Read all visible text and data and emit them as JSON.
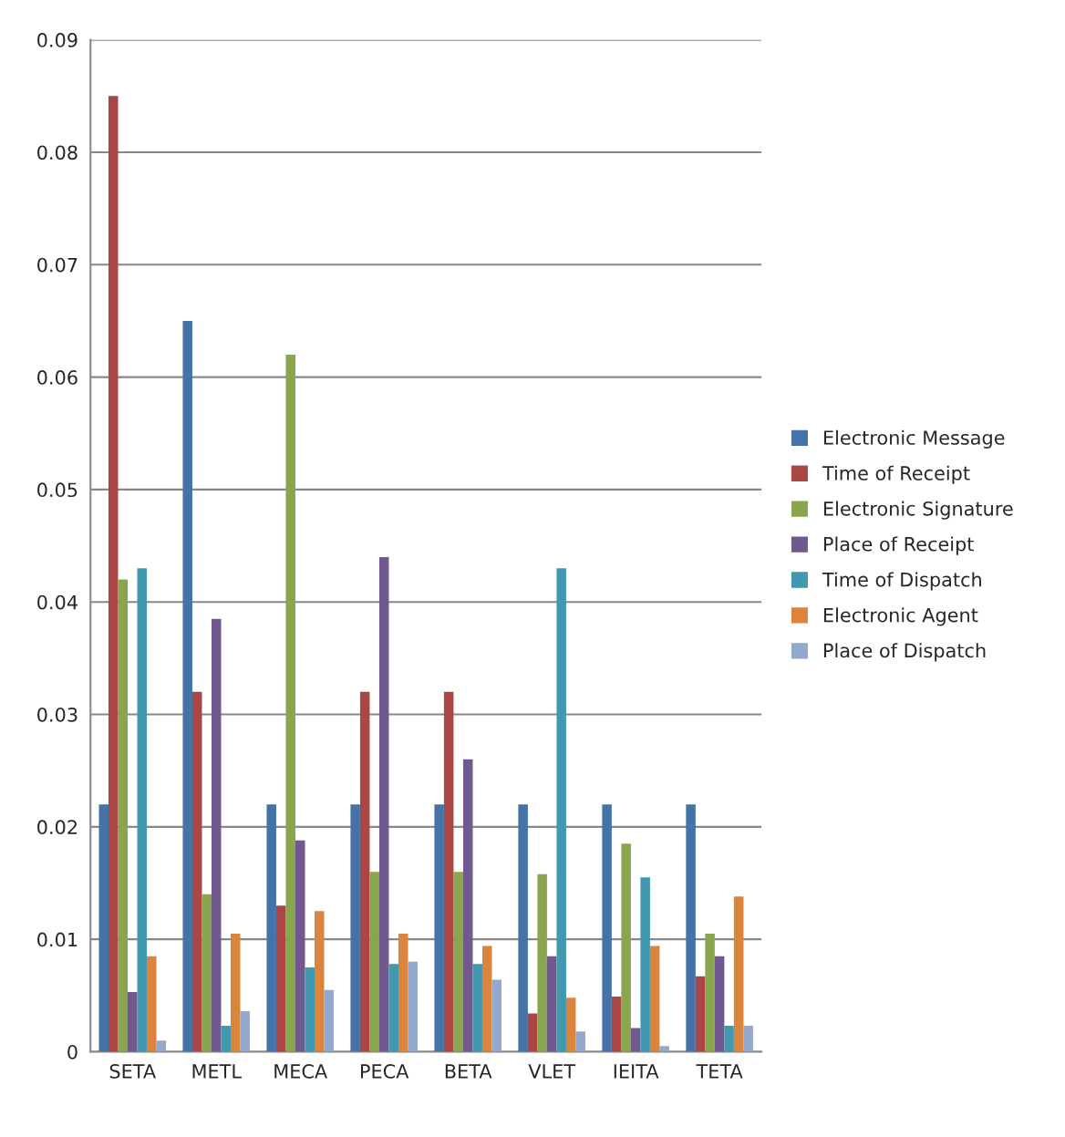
{
  "chart_data": {
    "type": "bar",
    "categories": [
      "SETA",
      "METL",
      "MECA",
      "PECA",
      "BETA",
      "VLET",
      "IEITA",
      "TETA"
    ],
    "series": [
      {
        "name": "Electronic Message",
        "color": "#4572a7",
        "values": [
          0.022,
          0.065,
          0.022,
          0.022,
          0.022,
          0.022,
          0.022,
          0.022
        ]
      },
      {
        "name": "Time of Receipt",
        "color": "#aa4643",
        "values": [
          0.085,
          0.032,
          0.013,
          0.032,
          0.032,
          0.0034,
          0.0049,
          0.0067
        ]
      },
      {
        "name": "Electronic Signature",
        "color": "#89a54e",
        "values": [
          0.042,
          0.014,
          0.062,
          0.016,
          0.016,
          0.0158,
          0.0185,
          0.0105
        ]
      },
      {
        "name": "Place of Receipt",
        "color": "#71588f",
        "values": [
          0.0053,
          0.0385,
          0.0188,
          0.044,
          0.026,
          0.0085,
          0.0021,
          0.0085
        ]
      },
      {
        "name": "Time of Dispatch",
        "color": "#4198af",
        "values": [
          0.043,
          0.0023,
          0.0075,
          0.0078,
          0.0078,
          0.043,
          0.0155,
          0.0023
        ]
      },
      {
        "name": "Electronic Agent",
        "color": "#db843d",
        "values": [
          0.0085,
          0.0105,
          0.0125,
          0.0105,
          0.0094,
          0.0048,
          0.0094,
          0.0138
        ]
      },
      {
        "name": "Place of Dispatch",
        "color": "#93a9cf",
        "values": [
          0.001,
          0.0036,
          0.0055,
          0.008,
          0.0064,
          0.0018,
          0.0005,
          0.0023
        ]
      }
    ],
    "ylim": [
      0,
      0.09
    ],
    "yticks": [
      0,
      0.01,
      0.02,
      0.03,
      0.04,
      0.05,
      0.06,
      0.07,
      0.08,
      0.09
    ],
    "grid": "y",
    "legend": "right"
  }
}
